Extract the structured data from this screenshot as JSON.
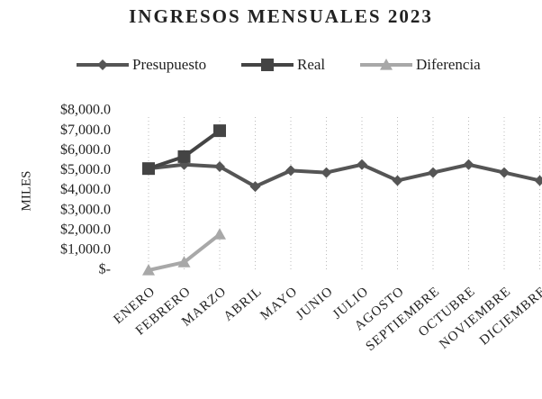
{
  "chart_data": {
    "type": "line",
    "title": "INGRESOS MENSUALES 2023",
    "y_label": "MILES",
    "categories": [
      "ENERO",
      "FEBRERO",
      "MARZO",
      "ABRIL",
      "MAYO",
      "JUNIO",
      "JULIO",
      "AGOSTO",
      "SEPTIEMBRE",
      "OCTUBRE",
      "NOVIEMBRE",
      "DICIEMBRE"
    ],
    "series": [
      {
        "name": "Presupuesto",
        "color": "#555555",
        "marker": "diamond",
        "values": [
          5100,
          5300,
          5200,
          4200,
          5000,
          4900,
          5300,
          4500,
          4900,
          5300,
          4900,
          4500
        ]
      },
      {
        "name": "Real",
        "color": "#444444",
        "marker": "square",
        "values": [
          5100,
          5700,
          7000,
          null,
          null,
          null,
          null,
          null,
          null,
          null,
          null,
          null
        ]
      },
      {
        "name": "Diferencia",
        "color": "#a8a8a8",
        "marker": "triangle",
        "values": [
          0,
          400,
          1800,
          null,
          null,
          null,
          null,
          null,
          null,
          null,
          null,
          null
        ]
      }
    ],
    "ylim": [
      0,
      8000
    ],
    "yticks": [
      {
        "value": 0,
        "label": "$-"
      },
      {
        "value": 1000,
        "label": "$1,000.0"
      },
      {
        "value": 2000,
        "label": "$2,000.0"
      },
      {
        "value": 3000,
        "label": "$3,000.0"
      },
      {
        "value": 4000,
        "label": "$4,000.0"
      },
      {
        "value": 5000,
        "label": "$5,000.0"
      },
      {
        "value": 6000,
        "label": "$6,000.0"
      },
      {
        "value": 7000,
        "label": "$7,000.0"
      },
      {
        "value": 8000,
        "label": "$8,000.0"
      }
    ],
    "x_grid": true,
    "legend": "top"
  }
}
